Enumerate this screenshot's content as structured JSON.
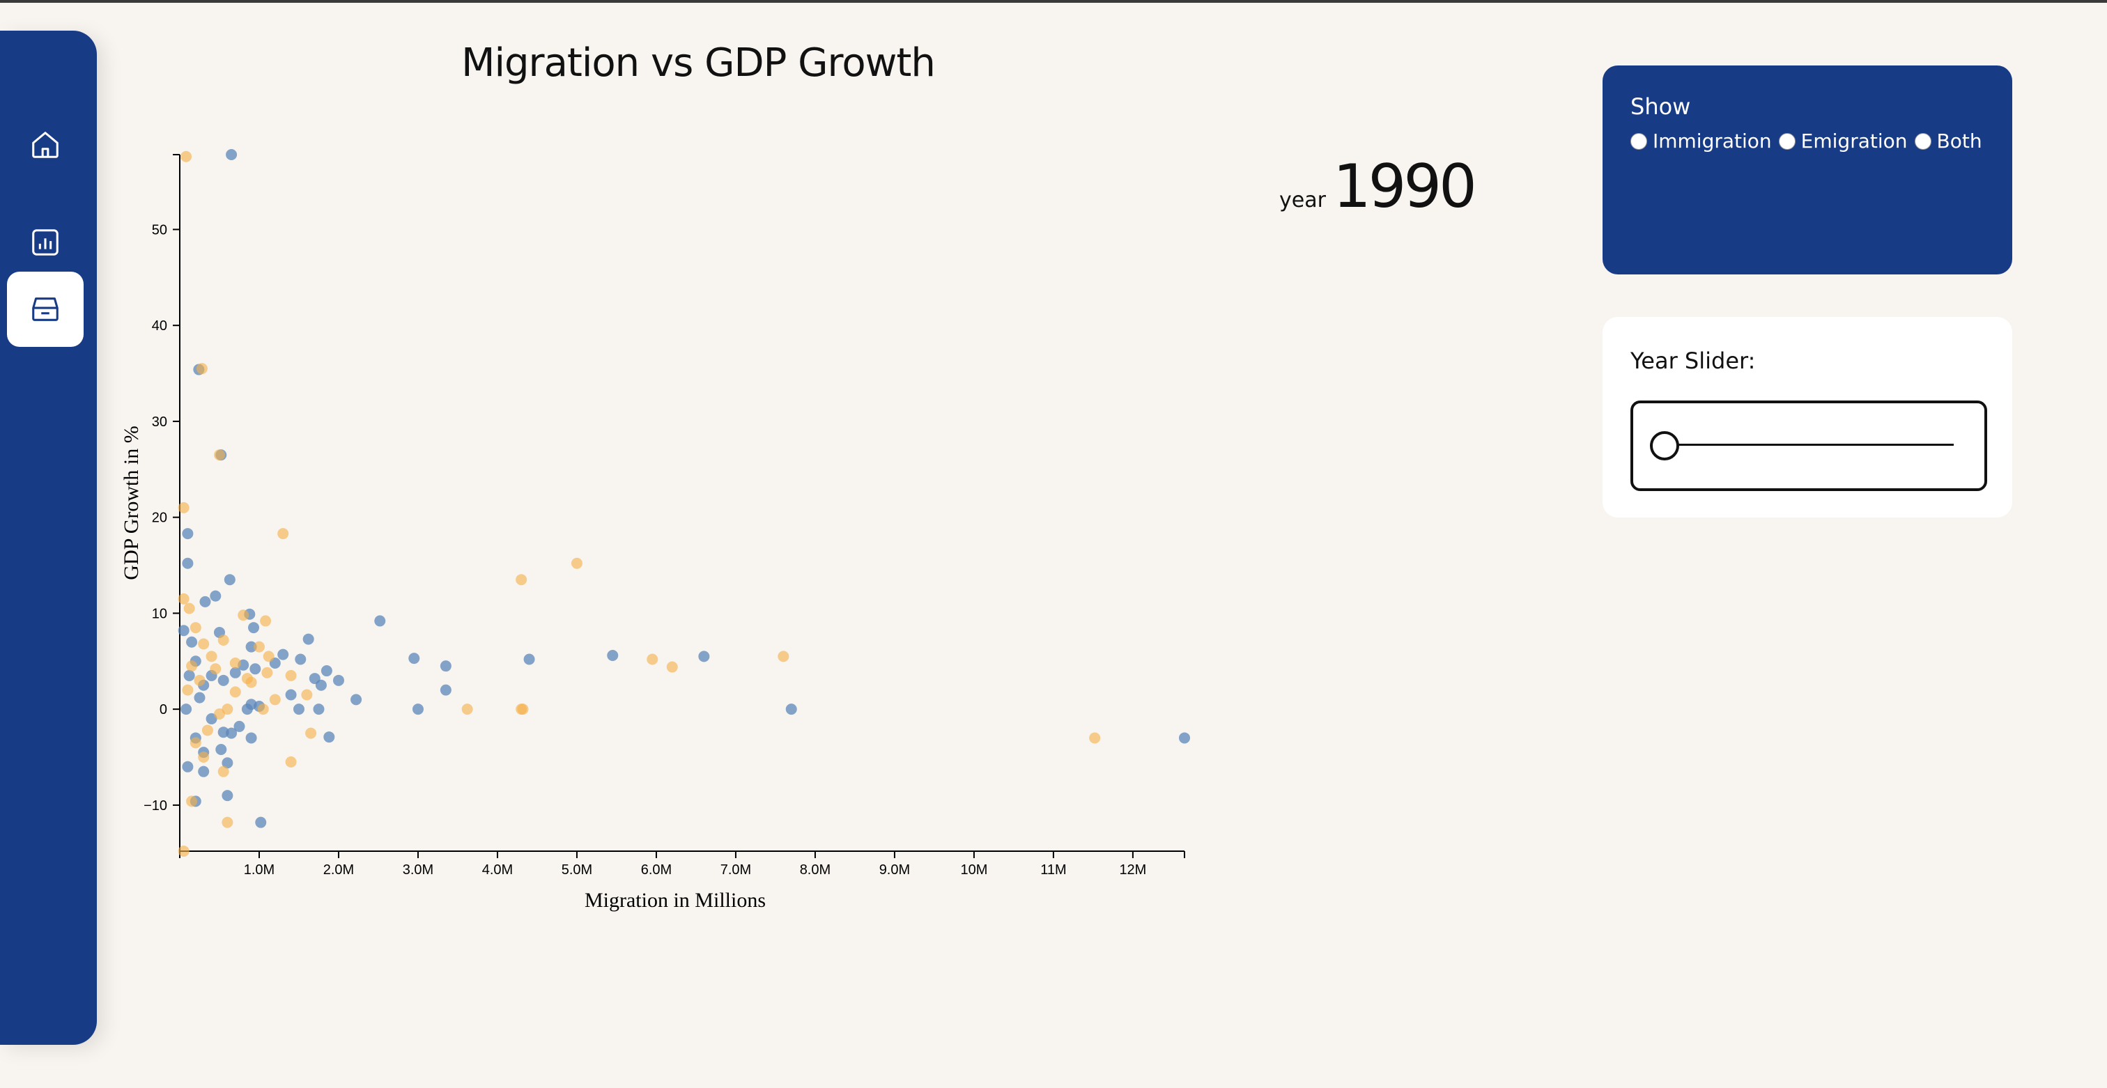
{
  "sidebar": {
    "items": [
      {
        "icon": "home-icon"
      },
      {
        "icon": "bar-chart-icon"
      },
      {
        "icon": "inbox-icon"
      }
    ]
  },
  "header": {
    "title": "Migration vs GDP Growth"
  },
  "year_display": {
    "label": "year",
    "value": "1990"
  },
  "show_panel": {
    "title": "Show",
    "options": [
      "Immigration",
      "Emigration",
      "Both"
    ]
  },
  "slider_panel": {
    "label": "Year Slider:"
  },
  "colors": {
    "sidebar": "#173b85",
    "background": "#f8f5f0",
    "immigration": "#5b86bb",
    "emigration": "#f6b04a"
  },
  "chart_data": {
    "type": "scatter",
    "xlabel": "Migration in Millions",
    "ylabel": "GDP Growth in %",
    "xlim": [
      0,
      12.65
    ],
    "ylim": [
      -14.8,
      57.8
    ],
    "x_ticks": [
      "1.0M",
      "2.0M",
      "3.0M",
      "4.0M",
      "5.0M",
      "6.0M",
      "7.0M",
      "8.0M",
      "9.0M",
      "10M",
      "11M",
      "12M"
    ],
    "y_ticks": [
      -10,
      0,
      10,
      20,
      30,
      40,
      50
    ],
    "series": [
      {
        "color": "#5b86bb",
        "points": [
          [
            0.65,
            57.8
          ],
          [
            0.24,
            35.4
          ],
          [
            0.52,
            26.5
          ],
          [
            0.1,
            18.3
          ],
          [
            0.1,
            15.2
          ],
          [
            0.63,
            13.5
          ],
          [
            0.45,
            11.8
          ],
          [
            0.32,
            11.2
          ],
          [
            0.88,
            9.9
          ],
          [
            0.93,
            8.5
          ],
          [
            0.5,
            8.0
          ],
          [
            1.62,
            7.3
          ],
          [
            2.52,
            9.2
          ],
          [
            0.9,
            6.5
          ],
          [
            1.3,
            5.7
          ],
          [
            1.52,
            5.2
          ],
          [
            2.95,
            5.3
          ],
          [
            3.35,
            4.5
          ],
          [
            4.4,
            5.2
          ],
          [
            5.45,
            5.6
          ],
          [
            6.6,
            5.5
          ],
          [
            1.85,
            4.0
          ],
          [
            2.0,
            3.0
          ],
          [
            1.7,
            3.2
          ],
          [
            1.78,
            2.5
          ],
          [
            1.2,
            4.8
          ],
          [
            0.95,
            4.2
          ],
          [
            0.8,
            4.6
          ],
          [
            0.7,
            3.8
          ],
          [
            0.4,
            3.5
          ],
          [
            0.55,
            3.0
          ],
          [
            0.3,
            2.5
          ],
          [
            3.35,
            2.0
          ],
          [
            2.22,
            1.0
          ],
          [
            1.4,
            1.5
          ],
          [
            0.9,
            0.5
          ],
          [
            1.0,
            0.3
          ],
          [
            0.85,
            0.0
          ],
          [
            1.5,
            0.0
          ],
          [
            1.75,
            0.0
          ],
          [
            3.0,
            0.0
          ],
          [
            7.7,
            0.0
          ],
          [
            0.75,
            -1.8
          ],
          [
            0.65,
            -2.5
          ],
          [
            0.55,
            -2.4
          ],
          [
            0.9,
            -3.0
          ],
          [
            1.88,
            -2.9
          ],
          [
            0.2,
            -3.0
          ],
          [
            0.3,
            -4.5
          ],
          [
            0.52,
            -4.2
          ],
          [
            0.1,
            -6.0
          ],
          [
            0.3,
            -6.5
          ],
          [
            0.6,
            -5.6
          ],
          [
            0.6,
            -9.0
          ],
          [
            0.2,
            -9.6
          ],
          [
            1.02,
            -11.8
          ],
          [
            12.65,
            -3.0
          ],
          [
            0.15,
            7.0
          ],
          [
            0.05,
            8.2
          ],
          [
            0.2,
            5.0
          ],
          [
            0.12,
            3.5
          ],
          [
            0.25,
            1.2
          ],
          [
            0.08,
            0.0
          ],
          [
            0.4,
            -1.0
          ]
        ]
      },
      {
        "color": "#f6b04a",
        "points": [
          [
            0.08,
            57.6
          ],
          [
            0.28,
            35.5
          ],
          [
            0.5,
            26.5
          ],
          [
            0.05,
            21.0
          ],
          [
            1.3,
            18.3
          ],
          [
            4.3,
            13.5
          ],
          [
            5.0,
            15.2
          ],
          [
            1.08,
            9.2
          ],
          [
            0.8,
            9.8
          ],
          [
            0.55,
            7.2
          ],
          [
            1.0,
            6.5
          ],
          [
            1.12,
            5.5
          ],
          [
            0.7,
            4.8
          ],
          [
            0.45,
            4.2
          ],
          [
            1.4,
            3.5
          ],
          [
            0.9,
            2.8
          ],
          [
            1.6,
            1.5
          ],
          [
            1.2,
            1.0
          ],
          [
            0.6,
            0.0
          ],
          [
            1.05,
            0.0
          ],
          [
            3.62,
            0.0
          ],
          [
            4.3,
            0.0
          ],
          [
            4.32,
            0.0
          ],
          [
            5.95,
            5.2
          ],
          [
            6.2,
            4.4
          ],
          [
            7.6,
            5.5
          ],
          [
            11.52,
            -3.0
          ],
          [
            1.65,
            -2.5
          ],
          [
            1.4,
            -5.5
          ],
          [
            0.55,
            -6.5
          ],
          [
            0.6,
            -11.8
          ],
          [
            0.3,
            -5.0
          ],
          [
            0.15,
            -9.6
          ],
          [
            0.05,
            -14.8
          ],
          [
            0.2,
            -3.5
          ],
          [
            0.35,
            -2.2
          ],
          [
            0.1,
            2.0
          ],
          [
            0.15,
            4.5
          ],
          [
            0.25,
            3.0
          ],
          [
            0.4,
            5.5
          ],
          [
            0.3,
            6.8
          ],
          [
            0.2,
            8.5
          ],
          [
            0.12,
            10.5
          ],
          [
            0.05,
            11.5
          ],
          [
            0.7,
            1.8
          ],
          [
            0.85,
            3.2
          ],
          [
            0.5,
            -0.5
          ],
          [
            1.1,
            3.8
          ]
        ]
      }
    ]
  }
}
